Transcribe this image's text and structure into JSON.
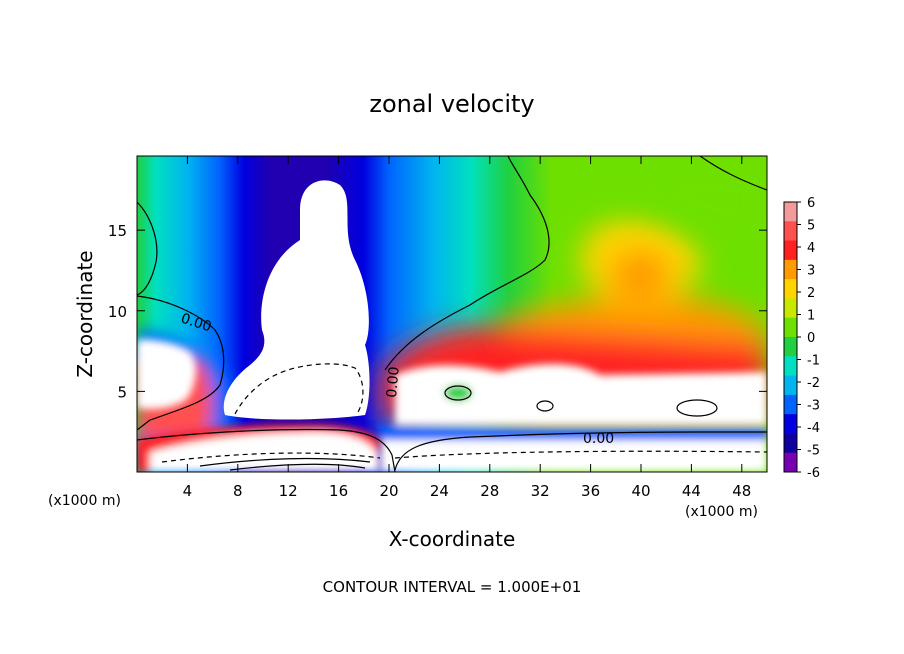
{
  "chart_data": {
    "type": "heatmap",
    "title": "zonal velocity",
    "xlabel": "X-coordinate",
    "ylabel": "Z-coordinate",
    "x_unit_note": "(x1000 m)",
    "footer": "CONTOUR INTERVAL = 1.000E+01",
    "xlim": [
      0,
      50
    ],
    "ylim": [
      0,
      19.6
    ],
    "x_ticks": [
      4,
      8,
      12,
      16,
      20,
      24,
      28,
      32,
      36,
      40,
      44,
      48
    ],
    "y_ticks": [
      5,
      10,
      15
    ],
    "colorbar": {
      "levels": [
        6,
        5,
        4,
        3,
        2,
        1,
        0,
        -1,
        -2,
        -3,
        -4,
        -5,
        -6
      ],
      "colors": [
        "#f59a9a",
        "#ff5050",
        "#ff2020",
        "#ff9a00",
        "#ffd400",
        "#c8e800",
        "#6ee000",
        "#20d040",
        "#00e0c0",
        "#00b4f0",
        "#0064ff",
        "#0000e0",
        "#1000a0",
        "#7800b0"
      ]
    },
    "contour_labels": [
      "0.00",
      "0.00",
      "0.00"
    ],
    "note": "Contoured field of zonal velocity; values outside [-6, 6] are left blank (white)."
  }
}
